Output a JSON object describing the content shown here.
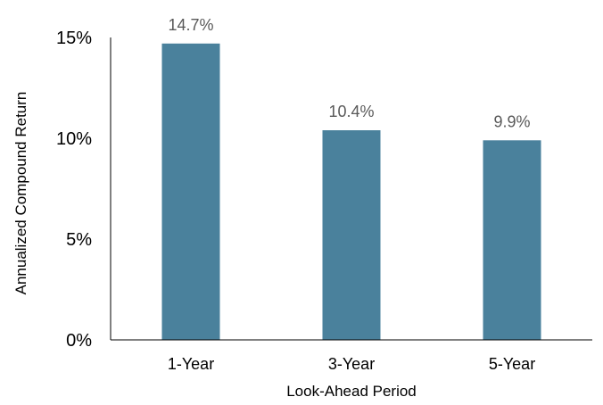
{
  "chart_data": {
    "type": "bar",
    "title": "",
    "xlabel": "Look-Ahead Period",
    "ylabel": "Annualized Compound Return",
    "categories": [
      "1-Year",
      "3-Year",
      "5-Year"
    ],
    "values": [
      14.7,
      10.4,
      9.9
    ],
    "data_labels": [
      "14.7%",
      "10.4%",
      "9.9%"
    ],
    "ylim": [
      0,
      15
    ],
    "yticks": [
      0,
      5,
      10,
      15
    ],
    "ytick_labels": [
      "0%",
      "5%",
      "10%",
      "15%"
    ],
    "grid": false,
    "legend": "none",
    "colors": {
      "bar": "#4a819c",
      "axis": "#000000",
      "data_label": "#595959",
      "text": "#000000"
    }
  }
}
